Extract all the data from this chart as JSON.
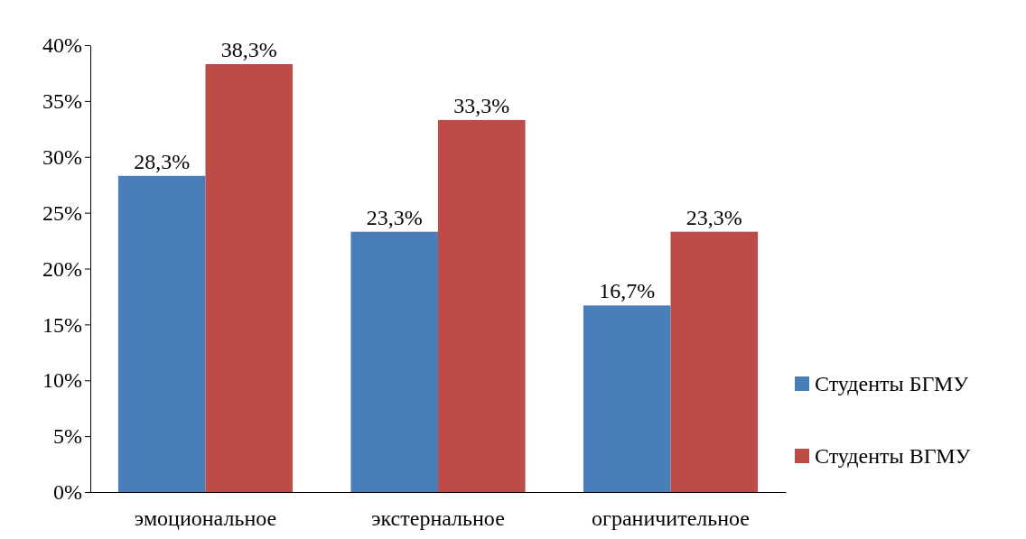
{
  "chart_data": {
    "type": "bar",
    "categories": [
      "эмоциональное",
      "экстернальное",
      "ограничительное"
    ],
    "series": [
      {
        "name": "Студенты БГМУ",
        "color": "#4a7ebb",
        "values": [
          28.3,
          23.3,
          16.7
        ],
        "value_labels": [
          "28,3%",
          "23,3%",
          "16,7%"
        ]
      },
      {
        "name": "Студенты ВГМУ",
        "color": "#be4b48",
        "values": [
          38.3,
          33.3,
          23.3
        ],
        "value_labels": [
          "38,3%",
          "33,3%",
          "23,3%"
        ]
      }
    ],
    "ylim": [
      0,
      40
    ],
    "yticks": [
      {
        "value": 0,
        "label": "0%"
      },
      {
        "value": 5,
        "label": "5%"
      },
      {
        "value": 10,
        "label": "10%"
      },
      {
        "value": 15,
        "label": "15%"
      },
      {
        "value": 20,
        "label": "20%"
      },
      {
        "value": 25,
        "label": "25%"
      },
      {
        "value": 30,
        "label": "30%"
      },
      {
        "value": 35,
        "label": "35%"
      },
      {
        "value": 40,
        "label": "40%"
      }
    ],
    "grid": false,
    "legend": "right"
  }
}
